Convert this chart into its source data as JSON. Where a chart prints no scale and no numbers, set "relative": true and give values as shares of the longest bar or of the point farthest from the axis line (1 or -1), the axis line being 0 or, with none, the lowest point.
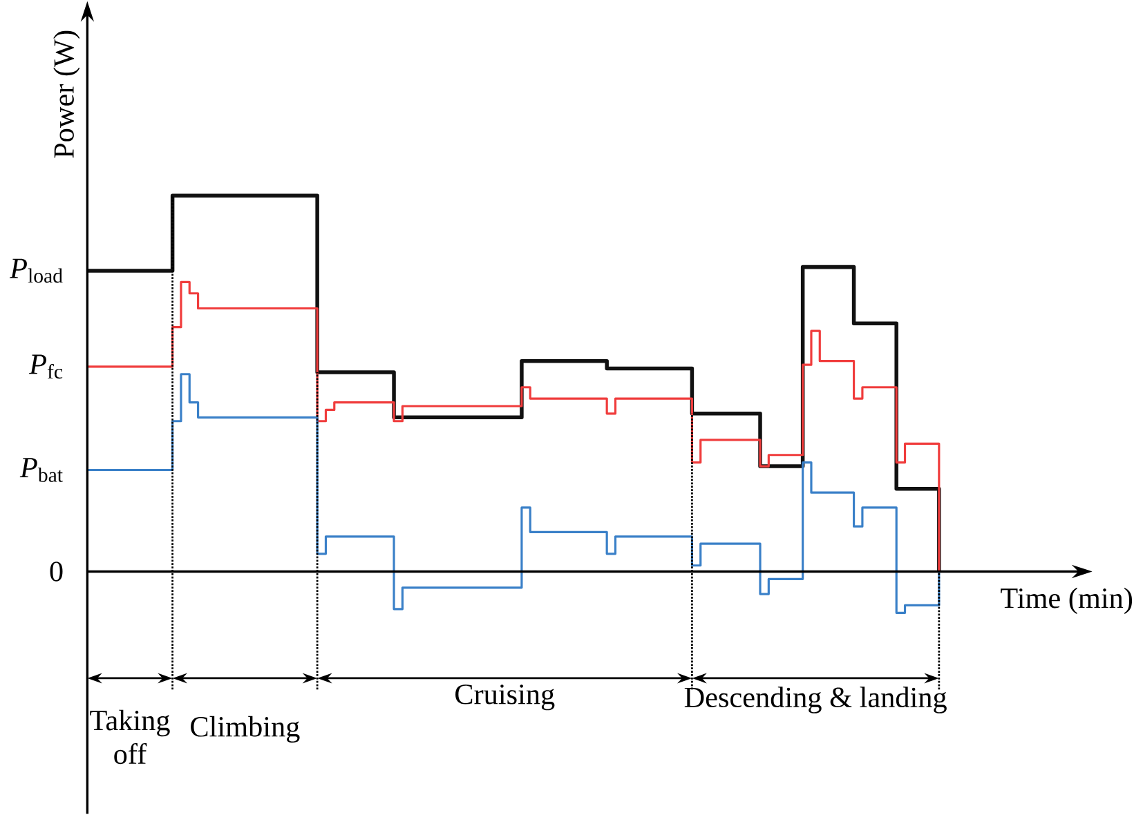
{
  "chart_data": {
    "type": "step",
    "relative": true,
    "categories": [
      null,
      null,
      null,
      null,
      null,
      null,
      null,
      null,
      null,
      null,
      null,
      null,
      null,
      null,
      null,
      null,
      null,
      null,
      null,
      null,
      null,
      null,
      null,
      null,
      null,
      null,
      null,
      null,
      null,
      null,
      null,
      null,
      null,
      null,
      null,
      null,
      null,
      null,
      null,
      null,
      null,
      null,
      null,
      null,
      null,
      null,
      null,
      null,
      null,
      null,
      null,
      null,
      null,
      null,
      null,
      null,
      null,
      null,
      null,
      null,
      null,
      null,
      null,
      null,
      null,
      null,
      null,
      null,
      null,
      null,
      null,
      null,
      null,
      null,
      null,
      null,
      null,
      null,
      null,
      null,
      null,
      null,
      null,
      null,
      null,
      null,
      null,
      null,
      null,
      null,
      null,
      null,
      null,
      null,
      null,
      null,
      null,
      null,
      null,
      null,
      null,
      null,
      null,
      null
    ],
    "series": [
      {
        "color": "#111111",
        "values": [
          0.8,
          0.8,
          0.8,
          0.8,
          0.8,
          0.8,
          0.8,
          0.8,
          0.8,
          0.8,
          1.0,
          1.0,
          1.0,
          1.0,
          1.0,
          1.0,
          1.0,
          1.0,
          1.0,
          1.0,
          1.0,
          1.0,
          1.0,
          1.0,
          1.0,
          1.0,
          1.0,
          0.53,
          0.53,
          0.53,
          0.53,
          0.53,
          0.53,
          0.53,
          0.53,
          0.53,
          0.41,
          0.41,
          0.41,
          0.41,
          0.41,
          0.41,
          0.41,
          0.41,
          0.41,
          0.41,
          0.41,
          0.41,
          0.41,
          0.41,
          0.41,
          0.56,
          0.56,
          0.56,
          0.56,
          0.56,
          0.56,
          0.56,
          0.56,
          0.56,
          0.56,
          0.54,
          0.54,
          0.54,
          0.54,
          0.54,
          0.54,
          0.54,
          0.54,
          0.54,
          0.54,
          0.42,
          0.42,
          0.42,
          0.42,
          0.42,
          0.42,
          0.42,
          0.42,
          0.28,
          0.28,
          0.28,
          0.28,
          0.28,
          0.81,
          0.81,
          0.81,
          0.81,
          0.81,
          0.81,
          0.66,
          0.66,
          0.66,
          0.66,
          0.66,
          0.22,
          0.22,
          0.22,
          0.22,
          0.22,
          0,
          null,
          null,
          null
        ]
      },
      {
        "color": "#f03c3c",
        "values": [
          0.545,
          0.545,
          0.545,
          0.545,
          0.545,
          0.545,
          0.545,
          0.545,
          0.545,
          0.545,
          0.65,
          0.77,
          0.74,
          0.7,
          0.7,
          0.7,
          0.7,
          0.7,
          0.7,
          0.7,
          0.7,
          0.7,
          0.7,
          0.7,
          0.7,
          0.7,
          0.7,
          0.4,
          0.43,
          0.45,
          0.45,
          0.45,
          0.45,
          0.45,
          0.45,
          0.45,
          0.4,
          0.44,
          0.44,
          0.44,
          0.44,
          0.44,
          0.44,
          0.44,
          0.44,
          0.44,
          0.44,
          0.44,
          0.44,
          0.44,
          0.44,
          0.49,
          0.46,
          0.46,
          0.46,
          0.46,
          0.46,
          0.46,
          0.46,
          0.46,
          0.46,
          0.42,
          0.46,
          0.46,
          0.46,
          0.46,
          0.46,
          0.46,
          0.46,
          0.46,
          0.46,
          0.29,
          0.35,
          0.35,
          0.35,
          0.35,
          0.35,
          0.35,
          0.35,
          0.28,
          0.31,
          0.31,
          0.31,
          0.31,
          0.55,
          0.64,
          0.56,
          0.56,
          0.56,
          0.56,
          0.46,
          0.49,
          0.49,
          0.49,
          0.49,
          0.29,
          0.34,
          0.34,
          0.34,
          0.34,
          0,
          null,
          null,
          null
        ]
      },
      {
        "color": "#3a80c8",
        "values": [
          0.27,
          0.27,
          0.27,
          0.27,
          0.27,
          0.27,
          0.27,
          0.27,
          0.27,
          0.27,
          0.4,
          0.525,
          0.45,
          0.41,
          0.41,
          0.41,
          0.41,
          0.41,
          0.41,
          0.41,
          0.41,
          0.41,
          0.41,
          0.41,
          0.41,
          0.41,
          0.41,
          0.047,
          0.093,
          0.093,
          0.093,
          0.093,
          0.093,
          0.093,
          0.093,
          0.093,
          -0.1,
          -0.043,
          -0.043,
          -0.043,
          -0.043,
          -0.043,
          -0.043,
          -0.043,
          -0.043,
          -0.043,
          -0.043,
          -0.043,
          -0.043,
          -0.043,
          -0.043,
          0.17,
          0.105,
          0.105,
          0.105,
          0.105,
          0.105,
          0.105,
          0.105,
          0.105,
          0.105,
          0.047,
          0.093,
          0.093,
          0.093,
          0.093,
          0.093,
          0.093,
          0.093,
          0.093,
          0.093,
          0.016,
          0.074,
          0.074,
          0.074,
          0.074,
          0.074,
          0.074,
          0.074,
          -0.06,
          -0.02,
          -0.02,
          -0.02,
          -0.02,
          0.29,
          0.21,
          0.21,
          0.21,
          0.21,
          0.21,
          0.12,
          0.17,
          0.17,
          0.17,
          0.17,
          -0.11,
          -0.09,
          -0.09,
          -0.09,
          -0.09,
          0,
          null,
          null,
          null
        ]
      }
    ],
    "ylabel": "Power (W)",
    "xlabel": "Time (min)",
    "annotations": [
      "*P*$_{load}$",
      "*P*$_{fc}$",
      "*P*$_{bat}$",
      "0",
      "Taking off",
      "Climbing",
      "Cruising",
      "Descending & landing"
    ]
  }
}
